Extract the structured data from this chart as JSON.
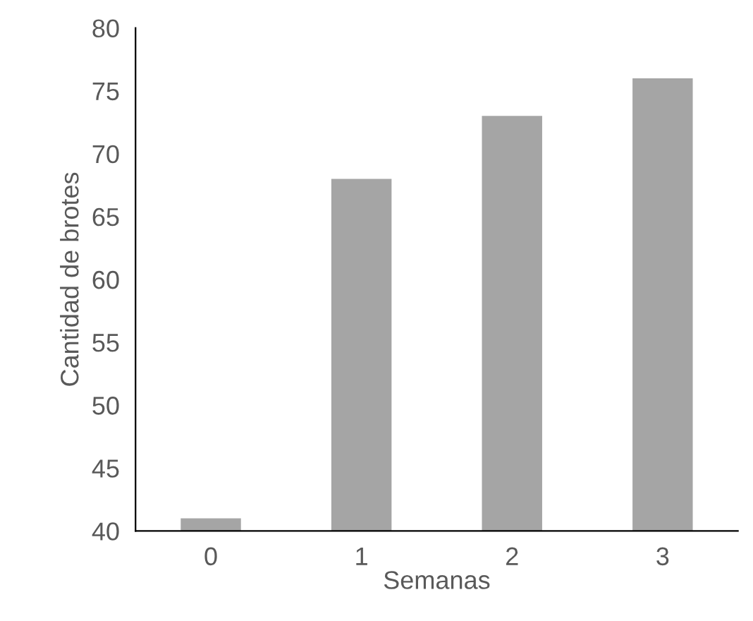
{
  "chart_data": {
    "type": "bar",
    "xlabel": "Semanas",
    "ylabel": "Cantidad de brotes",
    "categories": [
      "0",
      "1",
      "2",
      "3"
    ],
    "values": [
      41,
      68,
      73,
      76
    ],
    "color": "#a5a5a5",
    "ylim": [
      40,
      80
    ],
    "yticks": [
      40,
      45,
      50,
      55,
      60,
      65,
      70,
      75,
      80
    ],
    "grid": false,
    "legend": false
  }
}
